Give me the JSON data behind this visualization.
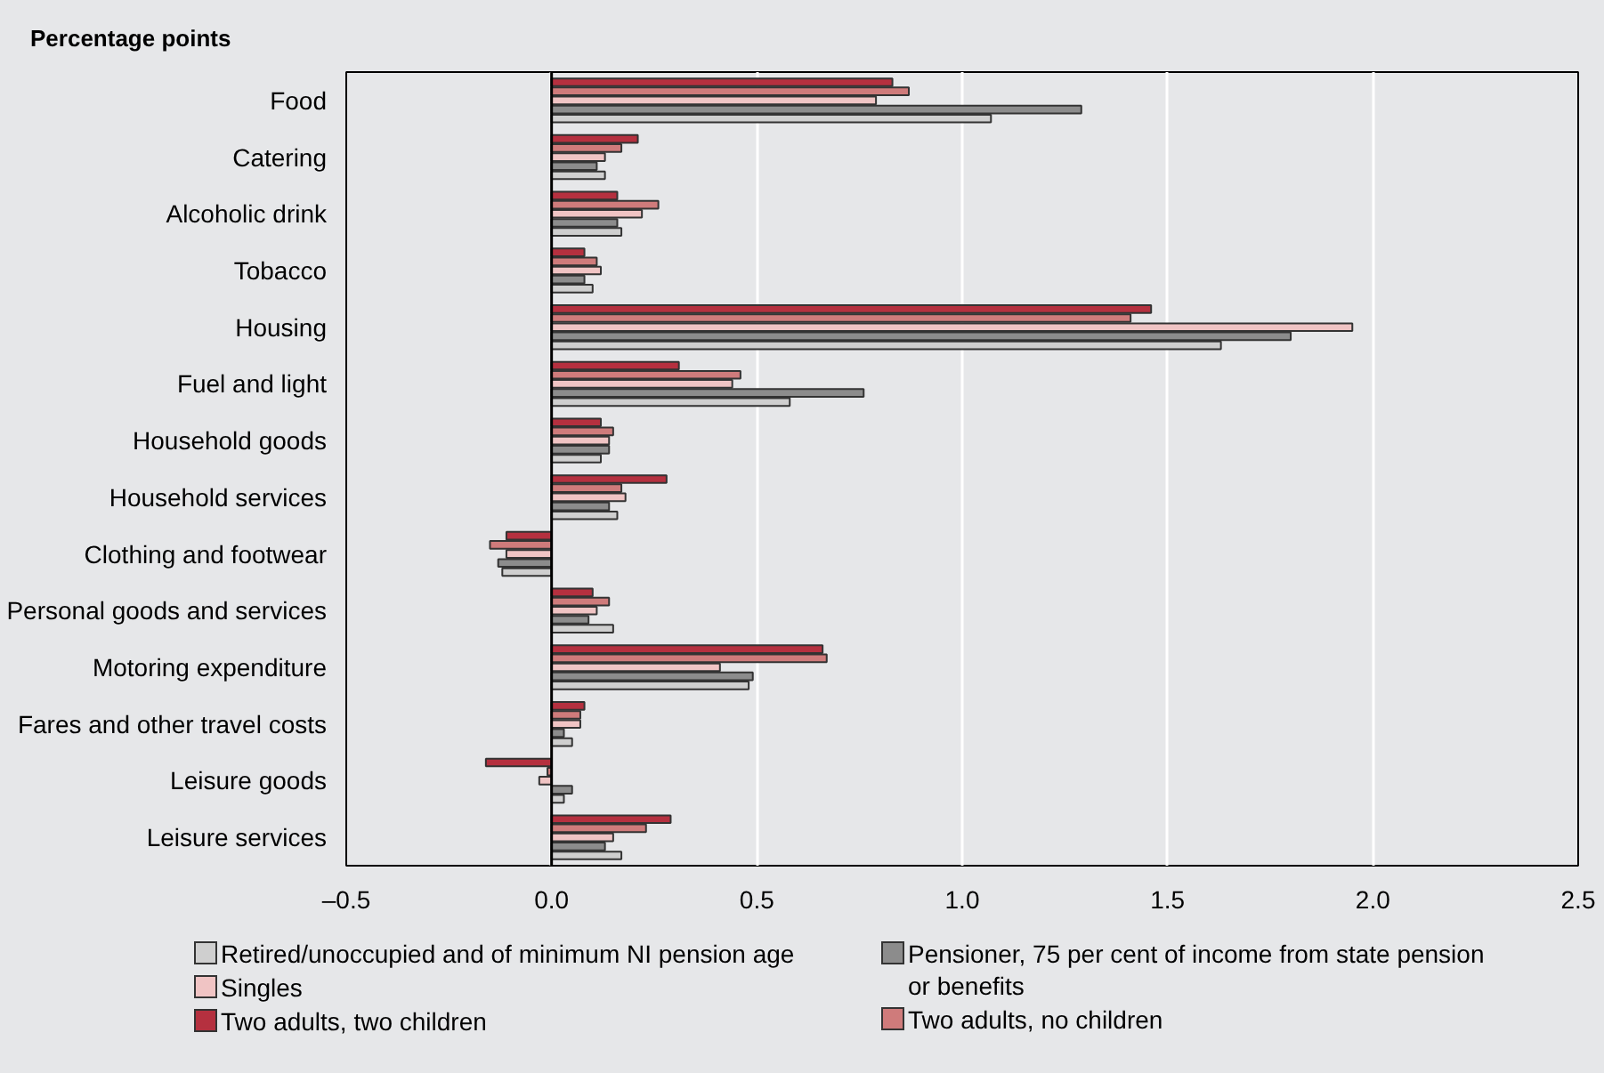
{
  "chart_data": {
    "type": "bar",
    "orientation": "horizontal",
    "title": "Percentage points",
    "categories": [
      "Food",
      "Catering",
      "Alcoholic drink",
      "Tobacco",
      "Housing",
      "Fuel and light",
      "Household goods",
      "Household services",
      "Clothing and footwear",
      "Personal goods and services",
      "Motoring expenditure",
      "Fares and other travel costs",
      "Leisure goods",
      "Leisure services"
    ],
    "series": [
      {
        "name": "Two adults, two children",
        "color": "#b5303f",
        "values": [
          0.83,
          0.21,
          0.16,
          0.08,
          1.46,
          0.31,
          0.12,
          0.28,
          -0.11,
          0.1,
          0.66,
          0.08,
          -0.16,
          0.29
        ]
      },
      {
        "name": "Two adults, no children",
        "color": "#cf7b7b",
        "values": [
          0.87,
          0.17,
          0.26,
          0.11,
          1.41,
          0.46,
          0.15,
          0.17,
          -0.15,
          0.14,
          0.67,
          0.07,
          -0.01,
          0.23
        ]
      },
      {
        "name": "Singles",
        "color": "#f0c4c4",
        "values": [
          0.79,
          0.13,
          0.22,
          0.12,
          1.95,
          0.44,
          0.14,
          0.18,
          -0.11,
          0.11,
          0.41,
          0.07,
          -0.03,
          0.15
        ]
      },
      {
        "name": "Pensioner, 75 per cent of income from state pension or benefits",
        "color": "#8c8c8c",
        "values": [
          1.29,
          0.11,
          0.16,
          0.08,
          1.8,
          0.76,
          0.14,
          0.14,
          -0.13,
          0.09,
          0.49,
          0.03,
          0.05,
          0.13
        ]
      },
      {
        "name": "Retired/unoccupied and of minimum NI pension age",
        "color": "#cfcfcf",
        "values": [
          1.07,
          0.13,
          0.17,
          0.1,
          1.63,
          0.58,
          0.12,
          0.16,
          -0.12,
          0.15,
          0.48,
          0.05,
          0.03,
          0.17
        ]
      }
    ],
    "xlim": [
      -0.5,
      2.5
    ],
    "xticks": [
      {
        "value": -0.5,
        "label": "–0.5"
      },
      {
        "value": 0,
        "label": "0.0"
      },
      {
        "value": 0.5,
        "label": "0.5"
      },
      {
        "value": 1,
        "label": "1.0"
      },
      {
        "value": 1.5,
        "label": "1.5"
      },
      {
        "value": 2,
        "label": "2.0"
      },
      {
        "value": 2.5,
        "label": "2.5"
      }
    ],
    "grid": "x",
    "legend": "bottom"
  }
}
